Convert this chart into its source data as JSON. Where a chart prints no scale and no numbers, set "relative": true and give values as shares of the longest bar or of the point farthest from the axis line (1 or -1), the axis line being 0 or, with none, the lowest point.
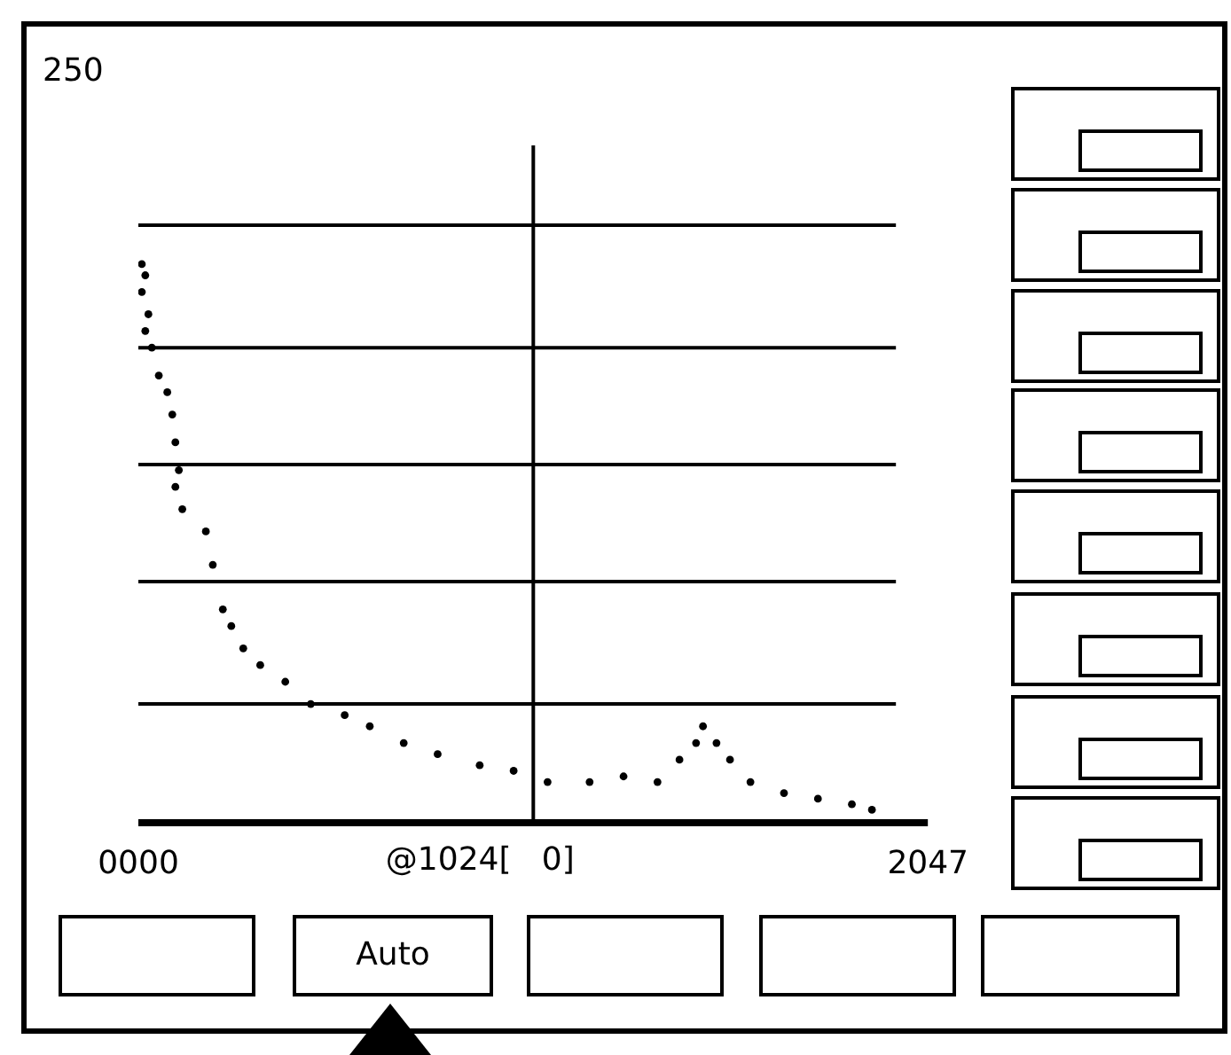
{
  "chart_data": {
    "type": "scatter",
    "marker": "circle",
    "legend": false,
    "x": [
      9,
      18,
      9,
      26,
      18,
      35,
      53,
      75,
      88,
      96,
      105,
      96,
      114,
      175,
      193,
      219,
      241,
      272,
      316,
      381,
      447,
      535,
      600,
      688,
      776,
      885,
      973,
      1061,
      1170,
      1258,
      1346,
      1403,
      1446,
      1464,
      1499,
      1534,
      1587,
      1674,
      1762,
      1850,
      1902
    ],
    "series": [
      {
        "color": "#000000",
        "values": [
          1,
          0.98,
          0.95,
          0.91,
          0.88,
          0.85,
          0.8,
          0.77,
          0.73,
          0.68,
          0.63,
          0.6,
          0.56,
          0.52,
          0.46,
          0.38,
          0.35,
          0.31,
          0.28,
          0.25,
          0.21,
          0.19,
          0.17,
          0.14,
          0.12,
          0.1,
          0.09,
          0.07,
          0.07,
          0.08,
          0.07,
          0.11,
          0.14,
          0.17,
          0.14,
          0.11,
          0.07,
          0.05,
          0.04,
          0.03,
          0.02
        ]
      }
    ],
    "relative": true,
    "xlim": [
      0,
      2047
    ],
    "xticks": [
      {
        "value": 0,
        "label": "0000"
      },
      {
        "value": 2047,
        "label": "2047"
      }
    ],
    "ref_lines": [
      {
        "axis": "x",
        "value": 1024,
        "label": "@1024[   0]",
        "color": "#000000"
      },
      {
        "axis": "y",
        "value": 0.21,
        "color": "#000000"
      },
      {
        "axis": "y",
        "value": 0.43,
        "color": "#000000"
      },
      {
        "axis": "y",
        "value": 0.64,
        "color": "#000000"
      },
      {
        "axis": "y",
        "value": 0.85,
        "color": "#000000"
      },
      {
        "axis": "y",
        "value": 1.07,
        "color": "#000000"
      }
    ],
    "annotations": [
      "250",
      "Auto"
    ]
  }
}
